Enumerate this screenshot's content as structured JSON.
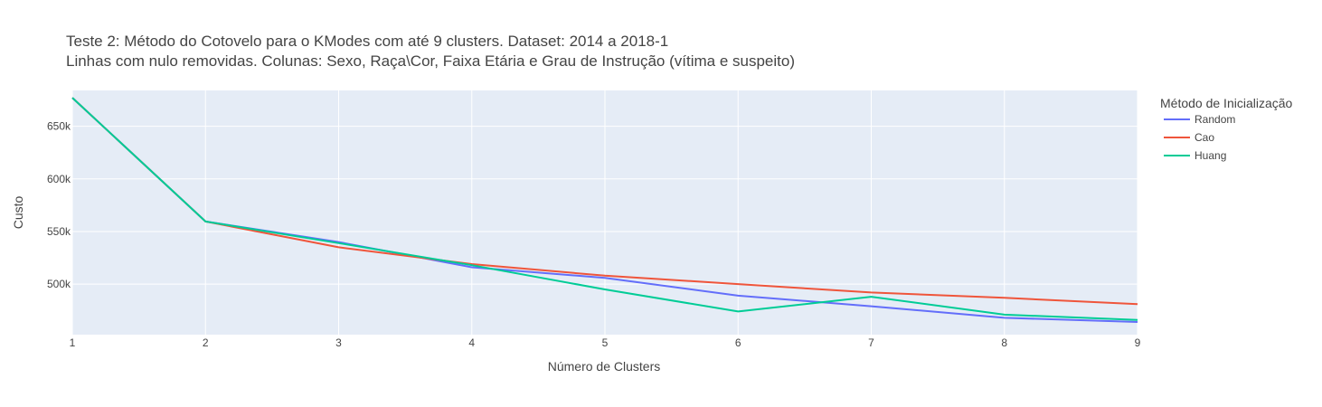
{
  "chart_data": {
    "type": "line",
    "title_lines": [
      "Teste 2: Método do Cotovelo para o KModes com até 9 clusters. Dataset: 2014 a 2018-1",
      "Linhas com nulo removidas. Colunas: Sexo, Raça\\Cor, Faixa Etária e Grau de Instrução (vítima e suspeito)"
    ],
    "xlabel": "Número de Clusters",
    "ylabel": "Custo",
    "x": [
      1,
      2,
      3,
      4,
      5,
      6,
      7,
      8,
      9
    ],
    "x_ticks": [
      "1",
      "2",
      "3",
      "4",
      "5",
      "6",
      "7",
      "8",
      "9"
    ],
    "y_ticks": [
      {
        "value": 500000,
        "label": "500k"
      },
      {
        "value": 550000,
        "label": "550k"
      },
      {
        "value": 600000,
        "label": "600k"
      },
      {
        "value": 650000,
        "label": "650k"
      }
    ],
    "xlim": [
      1,
      9
    ],
    "ylim": [
      452000,
      684000
    ],
    "grid": true,
    "legend_title": "Método de Inicialização",
    "legend_position": "right",
    "series": [
      {
        "name": "Random",
        "color": "#636efa",
        "values": [
          677000,
          559500,
          540000,
          516000,
          506000,
          489000,
          479000,
          468000,
          464000
        ]
      },
      {
        "name": "Cao",
        "color": "#ef553b",
        "values": [
          677000,
          559500,
          535000,
          519000,
          508000,
          500000,
          492000,
          487000,
          481000
        ]
      },
      {
        "name": "Huang",
        "color": "#00cc96",
        "values": [
          677000,
          559500,
          539000,
          518000,
          495000,
          474000,
          488000,
          471000,
          466000
        ]
      }
    ]
  }
}
